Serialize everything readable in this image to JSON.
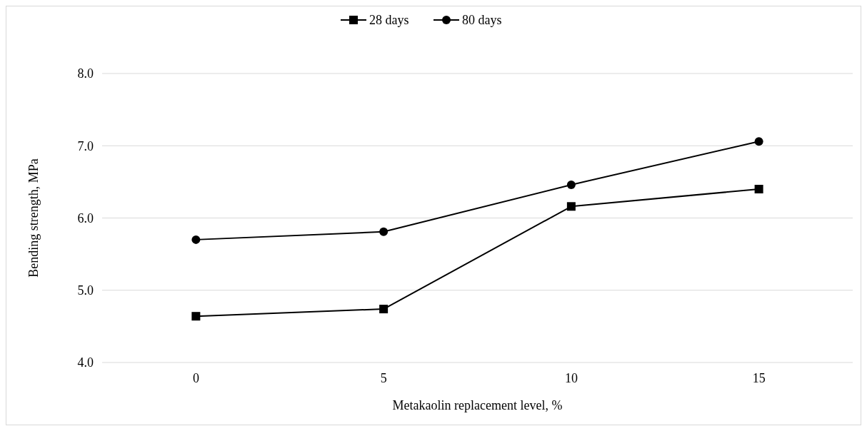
{
  "chart_data": {
    "type": "line",
    "xlabel": "Metakaolin replacement level, %",
    "ylabel": "Bending strength, MPa",
    "categories": [
      "0",
      "5",
      "10",
      "15"
    ],
    "series": [
      {
        "name": "28 days",
        "color": "#000000",
        "marker": "square",
        "values": [
          4.64,
          4.74,
          6.16,
          6.4
        ]
      },
      {
        "name": "80 days",
        "color": "#000000",
        "marker": "circle",
        "values": [
          5.7,
          5.81,
          6.46,
          7.06
        ]
      }
    ],
    "ylim": [
      4,
      8
    ],
    "yticks": [
      {
        "value": 4,
        "label": "4.0"
      },
      {
        "value": 5,
        "label": "5.0"
      },
      {
        "value": 6,
        "label": "6.0"
      },
      {
        "value": 7,
        "label": "7.0"
      },
      {
        "value": 8,
        "label": "8.0"
      }
    ],
    "grid": "y",
    "legend": "top",
    "line_style": "solid"
  }
}
